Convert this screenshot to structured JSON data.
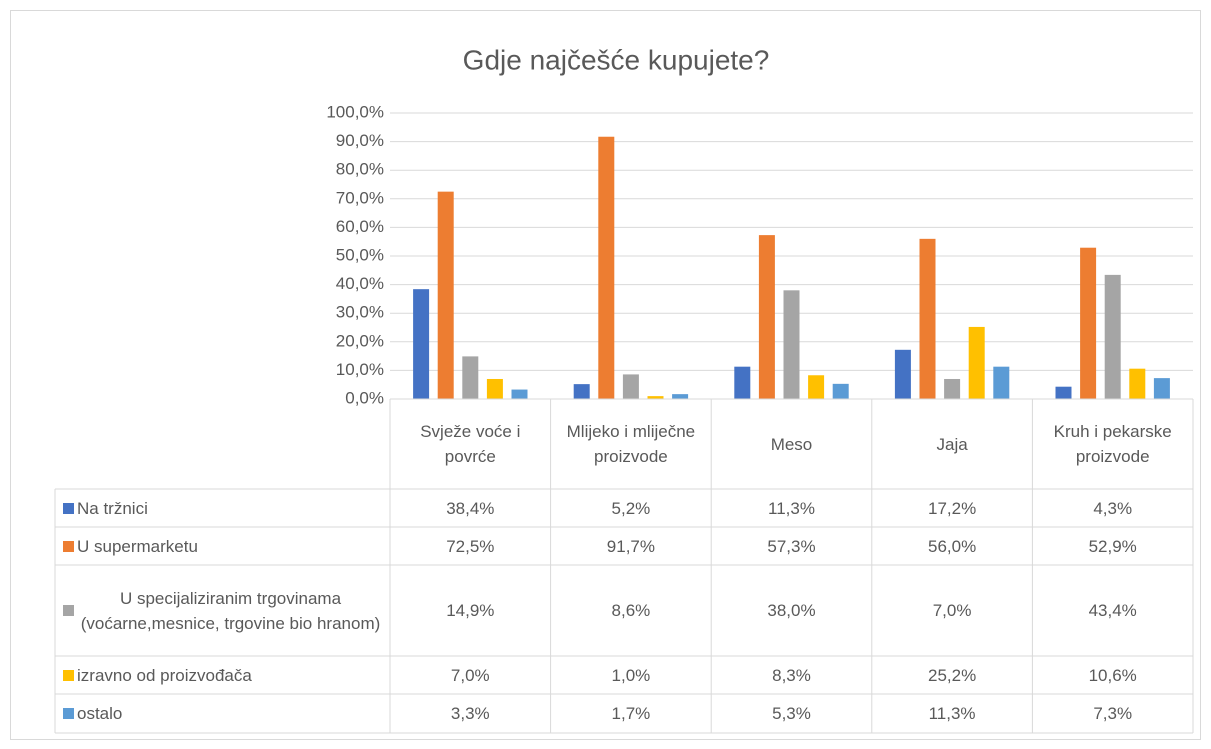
{
  "chart_data": {
    "type": "bar",
    "title": "Gdje najčešće kupujete?",
    "categories": [
      "Svježe voće i povrće",
      "Mlijeko i mliječne proizvode",
      "Meso",
      "Jaja",
      "Kruh i pekarske proizvode"
    ],
    "series": [
      {
        "name": "Na tržnici",
        "color": "#4472c4",
        "values": [
          38.4,
          5.2,
          11.3,
          17.2,
          4.3
        ],
        "value_labels": [
          "38,4%",
          "5,2%",
          "11,3%",
          "17,2%",
          "4,3%"
        ]
      },
      {
        "name": "U supermarketu",
        "color": "#ed7d31",
        "values": [
          72.5,
          91.7,
          57.3,
          56.0,
          52.9
        ],
        "value_labels": [
          "72,5%",
          "91,7%",
          "57,3%",
          "56,0%",
          "52,9%"
        ]
      },
      {
        "name": "U specijaliziranim trgovinama (voćarne,mesnice, trgovine bio hranom)",
        "color": "#a5a5a5",
        "values": [
          14.9,
          8.6,
          38.0,
          7.0,
          43.4
        ],
        "value_labels": [
          "14,9%",
          "8,6%",
          "38,0%",
          "7,0%",
          "43,4%"
        ]
      },
      {
        "name": "izravno od proizvođača",
        "color": "#ffc000",
        "values": [
          7.0,
          1.0,
          8.3,
          25.2,
          10.6
        ],
        "value_labels": [
          "7,0%",
          "1,0%",
          "8,3%",
          "25,2%",
          "10,6%"
        ]
      },
      {
        "name": "ostalo",
        "color": "#5b9bd5",
        "values": [
          3.3,
          1.7,
          5.3,
          11.3,
          7.3
        ],
        "value_labels": [
          "3,3%",
          "1,7%",
          "5,3%",
          "11,3%",
          "7,3%"
        ]
      }
    ],
    "ylim": [
      0,
      100
    ],
    "yticks": [
      {
        "value": 0,
        "label": "0,0%"
      },
      {
        "value": 10,
        "label": "10,0%"
      },
      {
        "value": 20,
        "label": "20,0%"
      },
      {
        "value": 30,
        "label": "30,0%"
      },
      {
        "value": 40,
        "label": "40,0%"
      },
      {
        "value": 50,
        "label": "50,0%"
      },
      {
        "value": 60,
        "label": "60,0%"
      },
      {
        "value": 70,
        "label": "70,0%"
      },
      {
        "value": 80,
        "label": "80,0%"
      },
      {
        "value": 90,
        "label": "90,0%"
      },
      {
        "value": 100,
        "label": "100,0%"
      }
    ],
    "grid": true
  }
}
